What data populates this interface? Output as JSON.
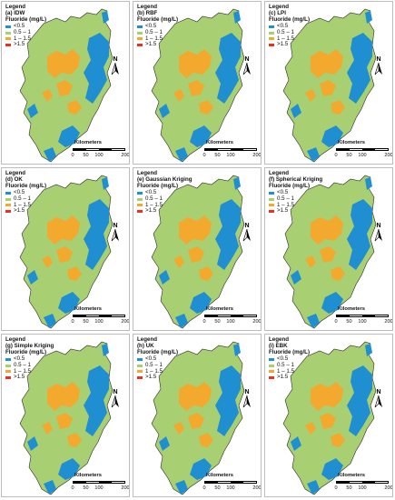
{
  "colors": {
    "lt05": "#1f8fd1",
    "c05_1": "#a8cf72",
    "c1_15": "#f2a92e",
    "gt15": "#e53222",
    "outline": "#2b2b2b"
  },
  "scale": {
    "title": "Kilometers",
    "ticks": [
      "0",
      "50",
      "100",
      "200"
    ]
  },
  "north_label": "N",
  "panels": [
    {
      "legend_title": "Legend",
      "method": "(a) IDW",
      "unit": "Fluoride (mg/L)",
      "classes": [
        {
          "label": "<0.5",
          "color_key": "lt05"
        },
        {
          "label": "0.5 – 1",
          "color_key": "c05_1"
        },
        {
          "label": "1 – 1.5",
          "color_key": "c1_15"
        },
        {
          "label": ">1.5",
          "color_key": "gt15"
        }
      ]
    },
    {
      "legend_title": "Legend",
      "method": "(b) RBF",
      "unit": "Fluoride (mg/L)",
      "classes": [
        {
          "label": "<0.5",
          "color_key": "lt05"
        },
        {
          "label": "0.5 – 1",
          "color_key": "c05_1"
        },
        {
          "label": "1 – 1.5",
          "color_key": "c1_15"
        },
        {
          "label": ">1.5",
          "color_key": "gt15"
        }
      ]
    },
    {
      "legend_title": "Legend",
      "method": "(c) LPI",
      "unit": "Fluoride (mg/L)",
      "classes": [
        {
          "label": "<0.5",
          "color_key": "lt05"
        },
        {
          "label": "0.5 – 1",
          "color_key": "c05_1"
        },
        {
          "label": "1 – 1.5",
          "color_key": "c1_15"
        },
        {
          "label": ">1.5",
          "color_key": "gt15"
        }
      ]
    },
    {
      "legend_title": "Legend",
      "method": "(d) OK",
      "unit": "Fluoride (mg/L)",
      "classes": [
        {
          "label": "<0.5",
          "color_key": "lt05"
        },
        {
          "label": "0.5 – 1",
          "color_key": "c05_1"
        },
        {
          "label": "1 – 1.5",
          "color_key": "c1_15"
        },
        {
          "label": ">1.5",
          "color_key": "gt15"
        }
      ]
    },
    {
      "legend_title": "Legend",
      "method": "(e) Gaussian Kriging",
      "unit": "Fluoride (mg/L)",
      "classes": [
        {
          "label": "<0.5",
          "color_key": "lt05"
        },
        {
          "label": "0.5 – 1",
          "color_key": "c05_1"
        },
        {
          "label": "1 – 1.5",
          "color_key": "c1_15"
        },
        {
          "label": ">1.5",
          "color_key": "gt15"
        }
      ]
    },
    {
      "legend_title": "Legend",
      "method": "(f) Spherical Kriging",
      "unit": "Fluoride (mg/L)",
      "classes": [
        {
          "label": "<0.5",
          "color_key": "lt05"
        },
        {
          "label": "0.5 – 1",
          "color_key": "c05_1"
        },
        {
          "label": "1 – 1.5",
          "color_key": "c1_15"
        },
        {
          "label": ">1.5",
          "color_key": "gt15"
        }
      ]
    },
    {
      "legend_title": "Legend",
      "method": "(g) Simple Kriging",
      "unit": "Fluoride (mg/L)",
      "classes": [
        {
          "label": "<0.5",
          "color_key": "lt05"
        },
        {
          "label": "0.5 – 1",
          "color_key": "c05_1"
        },
        {
          "label": "1 – 1.5",
          "color_key": "c1_15"
        },
        {
          "label": ">1.5",
          "color_key": "gt15"
        }
      ]
    },
    {
      "legend_title": "Legend",
      "method": "(h) UK",
      "unit": "Fluoride (mg/L)",
      "classes": [
        {
          "label": "<0.5",
          "color_key": "lt05"
        },
        {
          "label": "0.5 – 1",
          "color_key": "c05_1"
        },
        {
          "label": "1 – 1.5",
          "color_key": "c1_15"
        },
        {
          "label": ">1.5",
          "color_key": "gt15"
        }
      ]
    },
    {
      "legend_title": "Legend",
      "method": "(i) EBK",
      "unit": "Fluoride (mg/L)",
      "classes": [
        {
          "label": "<0.5",
          "color_key": "lt05"
        },
        {
          "label": "0.5 – 1",
          "color_key": "c05_1"
        },
        {
          "label": "1 – 1.5",
          "color_key": "c1_15"
        },
        {
          "label": ">1.5",
          "color_key": "gt15"
        }
      ]
    }
  ]
}
